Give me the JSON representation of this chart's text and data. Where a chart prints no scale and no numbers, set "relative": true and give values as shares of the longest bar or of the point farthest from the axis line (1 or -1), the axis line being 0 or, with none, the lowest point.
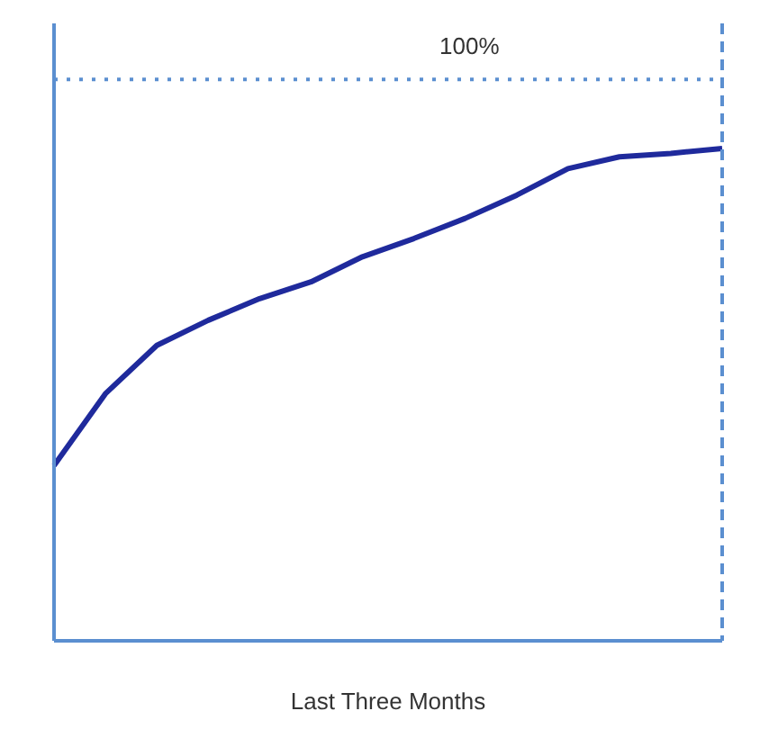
{
  "chart_data": {
    "type": "line",
    "relative": true,
    "xlabel": "Last Three Months",
    "categories": [
      null,
      null,
      null,
      null,
      null,
      null,
      null,
      null,
      null,
      null,
      null,
      null,
      null,
      null
    ],
    "marker": "none",
    "line_style": "solid",
    "series": [
      {
        "color": "#1f2a9c",
        "values": [
          0.356,
          0.502,
          0.6,
          0.651,
          0.695,
          0.729,
          0.78,
          0.817,
          0.858,
          0.905,
          0.959,
          0.983,
          0.99,
          1
        ]
      }
    ],
    "ref_lines": [
      {
        "axis": "y",
        "value": 1.14,
        "color": "#5b8fd0",
        "line_style": "dotted"
      }
    ],
    "annotations": [
      "100%"
    ]
  }
}
